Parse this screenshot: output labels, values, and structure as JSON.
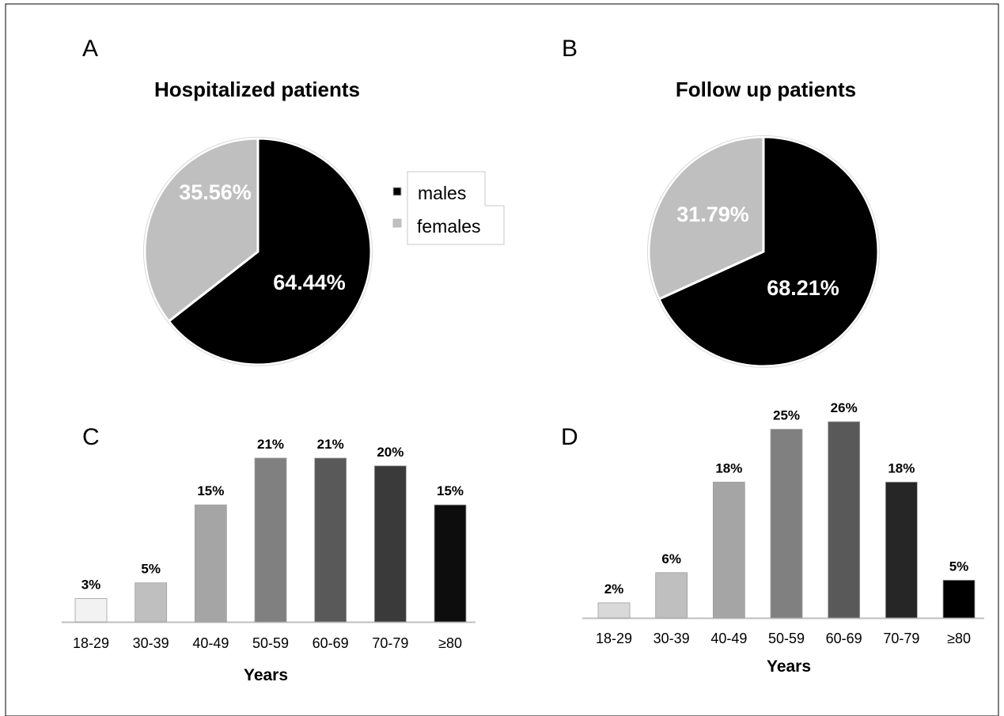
{
  "panels": {
    "A": {
      "letter": "A",
      "title": "Hospitalized patients"
    },
    "B": {
      "letter": "B",
      "title": "Follow up patients"
    },
    "C": {
      "letter": "C",
      "xlabel": "Years"
    },
    "D": {
      "letter": "D",
      "xlabel": "Years"
    }
  },
  "legend": {
    "items": [
      {
        "label": "males",
        "color": "#000000"
      },
      {
        "label": "females",
        "color": "#c0bfbf"
      }
    ]
  },
  "chart_data": [
    {
      "panel": "A",
      "type": "pie",
      "title": "Hospitalized patients",
      "labels": [
        "males",
        "females"
      ],
      "values": [
        64.44,
        35.56
      ],
      "value_labels": [
        "64.44%",
        "35.56%"
      ],
      "colors": [
        "#000000",
        "#c0bfbf"
      ]
    },
    {
      "panel": "B",
      "type": "pie",
      "title": "Follow up patients",
      "labels": [
        "males",
        "females"
      ],
      "values": [
        68.21,
        31.79
      ],
      "value_labels": [
        "68.21%",
        "31.79%"
      ],
      "colors": [
        "#000000",
        "#c0bfbf"
      ]
    },
    {
      "panel": "C",
      "type": "bar",
      "categories": [
        "18-29",
        "30-39",
        "40-49",
        "50-59",
        "60-69",
        "70-79",
        "≥80"
      ],
      "values": [
        3,
        5,
        15,
        21,
        21,
        20,
        15
      ],
      "value_labels": [
        "3%",
        "5%",
        "15%",
        "21%",
        "21%",
        "20%",
        "15%"
      ],
      "colors": [
        "#f2f2f2",
        "#bfbfbf",
        "#a5a5a5",
        "#808080",
        "#595959",
        "#3a3a3a",
        "#0d0d0d"
      ],
      "xlabel": "Years",
      "ylabel": "",
      "ylim": [
        0,
        21
      ],
      "grid": false
    },
    {
      "panel": "D",
      "type": "bar",
      "categories": [
        "18-29",
        "30-39",
        "40-49",
        "50-59",
        "60-69",
        "70-79",
        "≥80"
      ],
      "values": [
        2,
        6,
        18,
        25,
        26,
        18,
        5
      ],
      "value_labels": [
        "2%",
        "6%",
        "18%",
        "25%",
        "26%",
        "18%",
        "5%"
      ],
      "colors": [
        "#d9d9d9",
        "#bfbfbf",
        "#a5a5a5",
        "#808080",
        "#595959",
        "#262626",
        "#000000"
      ],
      "xlabel": "Years",
      "ylabel": "",
      "ylim": [
        0,
        26
      ],
      "grid": false
    }
  ]
}
